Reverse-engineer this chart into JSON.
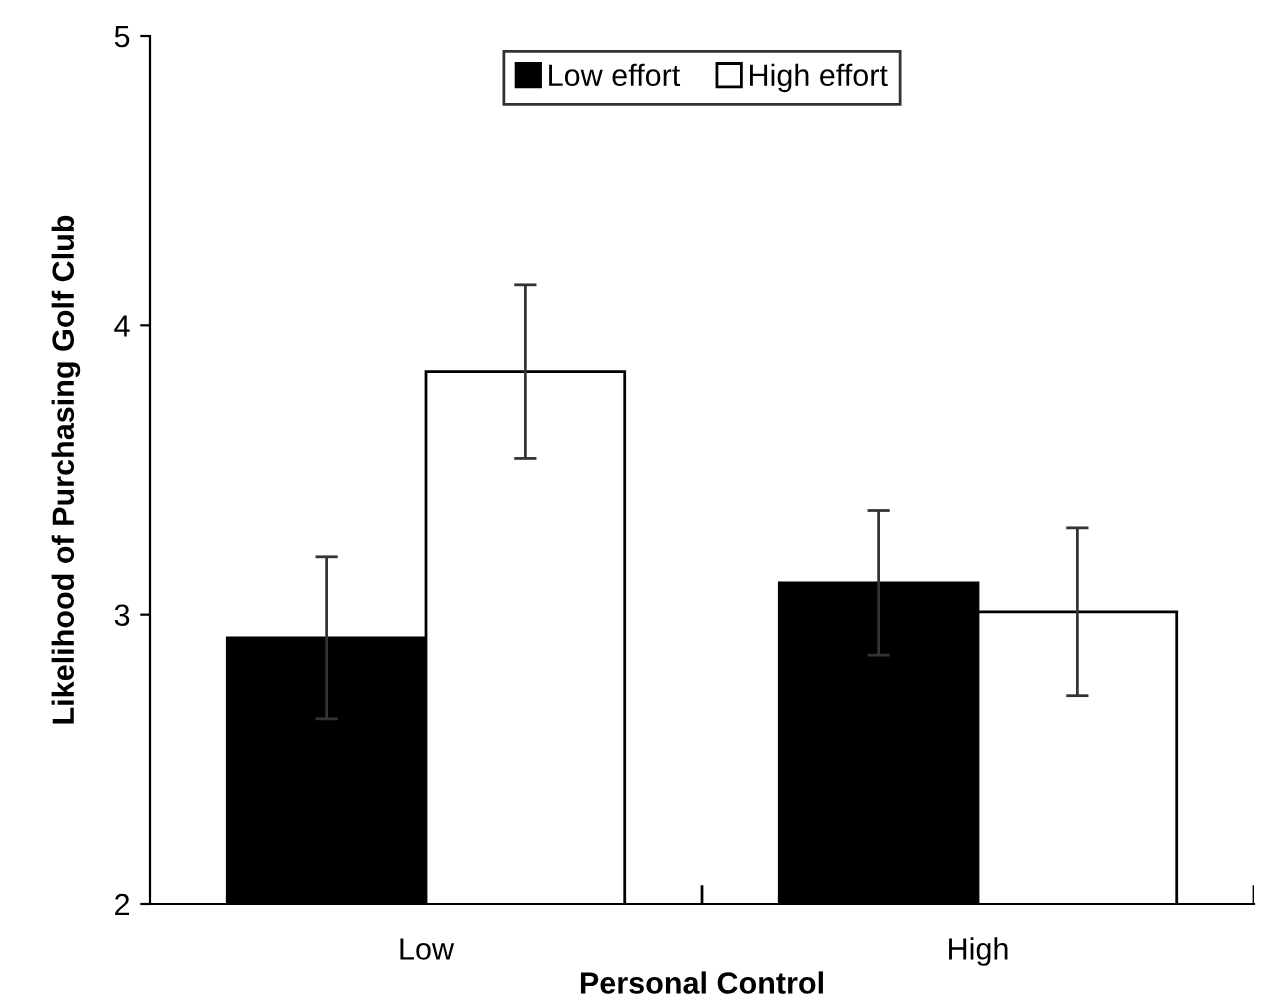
{
  "chart_data": {
    "type": "bar",
    "xlabel": "Personal Control",
    "ylabel": "Likelihood of Purchasing Golf Club",
    "categories": [
      "Low",
      "High"
    ],
    "series": [
      {
        "name": "Low effort",
        "color": "#000000",
        "values": [
          2.92,
          3.11
        ],
        "errors": [
          0.28,
          0.25
        ]
      },
      {
        "name": "High effort",
        "color": "#ffffff",
        "values": [
          3.84,
          3.01
        ],
        "errors": [
          0.3,
          0.29
        ]
      }
    ],
    "ylim": [
      2,
      5
    ],
    "yticks": [
      2,
      3,
      4,
      5
    ],
    "grid": false,
    "legend": "top"
  }
}
